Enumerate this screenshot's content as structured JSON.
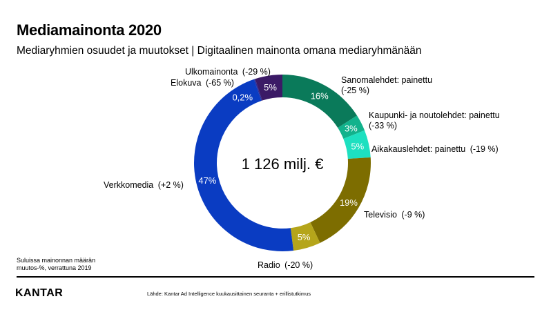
{
  "header": {
    "title": "Mediamainonta 2020",
    "subtitle": "Mediaryhmien osuudet ja muutokset | Digitaalinen mainonta omana mediaryhmänään"
  },
  "chart_data": {
    "type": "pie",
    "variant": "donut",
    "center_label": "1 126 milj. €",
    "start": "top, clockwise",
    "slices": [
      {
        "name": "Sanomalehdet: painettu",
        "change": "(-25 %)",
        "value": 16,
        "value_label": "16%",
        "color": "#0a7a5a"
      },
      {
        "name": "Kaupunki- ja noutolehdet: painettu",
        "change": "(-33 %)",
        "value": 3,
        "value_label": "3%",
        "color": "#12b28c"
      },
      {
        "name": "Aikakauslehdet: painettu",
        "change": "(-19 %)",
        "value": 5,
        "value_label": "5%",
        "color": "#1de0c0"
      },
      {
        "name": "Televisio",
        "change": "(-9 %)",
        "value": 19,
        "value_label": "19%",
        "color": "#7d6d00"
      },
      {
        "name": "Radio",
        "change": "(-20 %)",
        "value": 5,
        "value_label": "5%",
        "color": "#b5a51a"
      },
      {
        "name": "Verkkomedia",
        "change": "(+2 %)",
        "value": 46.8,
        "value_label": "47%",
        "color": "#0a3cc2"
      },
      {
        "name": "Elokuva",
        "change": "(-65 %)",
        "value": 0.2,
        "value_label": "0,2%",
        "color": "#2a2a9a"
      },
      {
        "name": "Ulkomainonta",
        "change": "(-29 %)",
        "value": 5,
        "value_label": "5%",
        "color": "#3b1a66"
      }
    ]
  },
  "footnote": "Suluissa mainonnan määrän muutos-%, verrattuna 2019",
  "brand": "KANTAR",
  "source": "Lähde: Kantar Ad Intelligence kuukausittainen seuranta + erillistutkimus"
}
